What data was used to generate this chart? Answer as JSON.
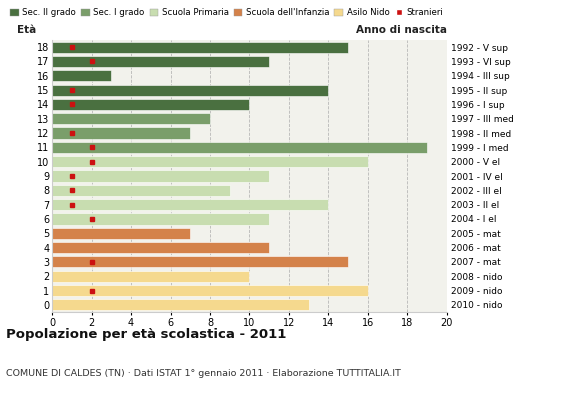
{
  "ages": [
    18,
    17,
    16,
    15,
    14,
    13,
    12,
    11,
    10,
    9,
    8,
    7,
    6,
    5,
    4,
    3,
    2,
    1,
    0
  ],
  "years": [
    "1992 - V sup",
    "1993 - VI sup",
    "1994 - III sup",
    "1995 - II sup",
    "1996 - I sup",
    "1997 - III med",
    "1998 - II med",
    "1999 - I med",
    "2000 - V el",
    "2001 - IV el",
    "2002 - III el",
    "2003 - II el",
    "2004 - I el",
    "2005 - mat",
    "2006 - mat",
    "2007 - mat",
    "2008 - nido",
    "2009 - nido",
    "2010 - nido"
  ],
  "values": [
    15,
    11,
    3,
    14,
    10,
    8,
    7,
    19,
    16,
    11,
    9,
    14,
    11,
    7,
    11,
    15,
    10,
    16,
    13
  ],
  "stranieri": [
    1,
    2,
    0,
    1,
    1,
    0,
    1,
    2,
    2,
    1,
    1,
    1,
    2,
    0,
    0,
    2,
    0,
    2,
    0
  ],
  "bar_colors": [
    "#4a7040",
    "#4a7040",
    "#4a7040",
    "#4a7040",
    "#4a7040",
    "#7a9e6a",
    "#7a9e6a",
    "#7a9e6a",
    "#c8ddb0",
    "#c8ddb0",
    "#c8ddb0",
    "#c8ddb0",
    "#c8ddb0",
    "#d4824a",
    "#d4824a",
    "#d4824a",
    "#f5d98e",
    "#f5d98e",
    "#f5d98e"
  ],
  "legend_labels": [
    "Sec. II grado",
    "Sec. I grado",
    "Scuola Primaria",
    "Scuola dell'Infanzia",
    "Asilo Nido",
    "Stranieri"
  ],
  "legend_colors": [
    "#4a7040",
    "#7a9e6a",
    "#c8ddb0",
    "#d4824a",
    "#f5d98e",
    "#cc1111"
  ],
  "title": "Popolazione per età scolastica - 2011",
  "subtitle": "COMUNE DI CALDES (TN) · Dati ISTAT 1° gennaio 2011 · Elaborazione TUTTITALIA.IT",
  "label_eta": "Età",
  "label_anno": "Anno di nascita",
  "xlim": [
    0,
    20
  ],
  "xticks": [
    0,
    2,
    4,
    6,
    8,
    10,
    12,
    14,
    16,
    18,
    20
  ],
  "stranieri_color": "#cc1111",
  "bg_color": "#ffffff",
  "bar_bg_color": "#f2f2ec"
}
